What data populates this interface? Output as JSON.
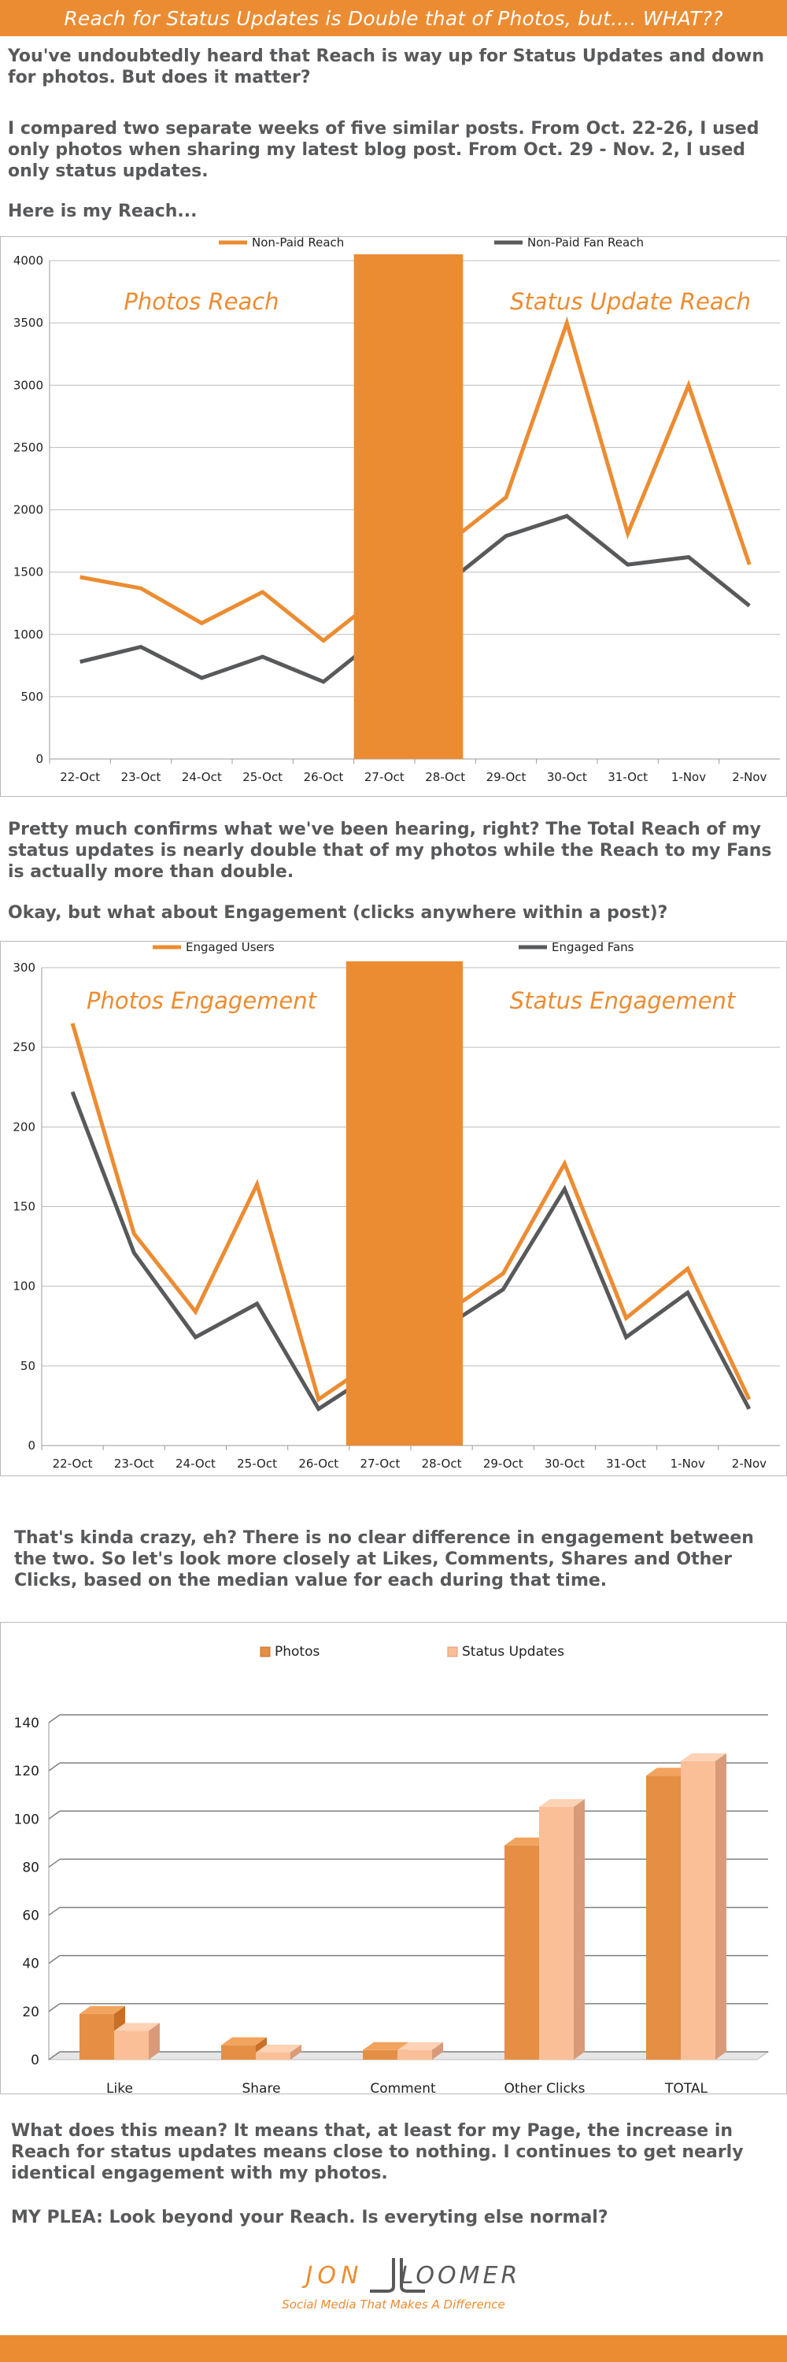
{
  "header": {
    "title": "Reach for Status Updates is Double that of Photos, but.... WHAT??"
  },
  "text": {
    "p1": "You've undoubtedly heard that Reach is way up for Status Updates and down for photos. But does it matter?",
    "p2": "I compared two separate weeks of five similar posts. From Oct. 22-26, I used only photos when sharing my latest blog post. From Oct. 29 - Nov. 2, I used only status updates.",
    "p3": "Here is my Reach...",
    "p4": "Pretty much confirms what we've been hearing, right?  The Total Reach of my status updates  is nearly double that of my photos while the Reach to my Fans is actually more than double.",
    "p5": "Okay, but what about Engagement (clicks anywhere within a post)?",
    "p6": "That's kinda crazy, eh? There is no clear difference in engagement between the two. So let's look more closely at Likes, Comments, Shares and Other Clicks, based on the median value for each during that time.",
    "p7": "What does this mean? It means that, at least for my Page, the increase in Reach for status updates means close to nothing. I continues to get nearly identical engagement with my photos.",
    "p8": "MY PLEA: Look beyond your Reach. Is everyting else normal?"
  },
  "logo": {
    "name_left": "JON",
    "name_right": "LOOMER",
    "tagline": "Social Media That Makes A Difference"
  },
  "colors": {
    "orange": "#ec8c32",
    "dark": "#58595b",
    "light_orange": "#fbbf98",
    "bar_orange": "#e48f44"
  },
  "chart_data": [
    {
      "type": "line",
      "categories": [
        "22-Oct",
        "23-Oct",
        "24-Oct",
        "25-Oct",
        "26-Oct",
        "27-Oct",
        "28-Oct",
        "29-Oct",
        "30-Oct",
        "31-Oct",
        "1-Nov",
        "2-Nov"
      ],
      "series": [
        {
          "name": "Non-Paid Reach",
          "values": [
            1460,
            1370,
            1090,
            1340,
            950,
            null,
            null,
            2100,
            3500,
            1810,
            3000,
            1560
          ]
        },
        {
          "name": "Non-Paid Fan Reach",
          "values": [
            780,
            900,
            650,
            820,
            620,
            null,
            null,
            1790,
            1950,
            1560,
            1620,
            1230
          ]
        }
      ],
      "yticks": [
        0,
        500,
        1000,
        1500,
        2000,
        2500,
        3000,
        3500,
        4000
      ],
      "ylim": [
        0,
        4000
      ],
      "annotations": [
        "Photos Reach",
        "Status Update Reach"
      ],
      "grid": true,
      "legend": "top"
    },
    {
      "type": "line",
      "categories": [
        "22-Oct",
        "23-Oct",
        "24-Oct",
        "25-Oct",
        "26-Oct",
        "27-Oct",
        "28-Oct",
        "29-Oct",
        "30-Oct",
        "31-Oct",
        "1-Nov",
        "2-Nov"
      ],
      "series": [
        {
          "name": "Engaged Users",
          "values": [
            265,
            133,
            84,
            164,
            29,
            null,
            null,
            108,
            177,
            80,
            111,
            29
          ]
        },
        {
          "name": "Engaged Fans",
          "values": [
            222,
            121,
            68,
            89,
            23,
            null,
            null,
            98,
            161,
            68,
            96,
            23
          ]
        }
      ],
      "yticks": [
        0,
        50,
        100,
        150,
        200,
        250,
        300
      ],
      "ylim": [
        0,
        300
      ],
      "annotations": [
        "Photos Engagement",
        "Status Engagement"
      ],
      "grid": true,
      "legend": "top"
    },
    {
      "type": "bar",
      "categories": [
        "Like",
        "Share",
        "Comment",
        "Other Clicks",
        "TOTAL"
      ],
      "series": [
        {
          "name": "Photos",
          "values": [
            19,
            6,
            4,
            89,
            118
          ]
        },
        {
          "name": "Status Updates",
          "values": [
            12,
            3,
            4,
            105,
            124
          ]
        }
      ],
      "yticks": [
        0,
        20,
        40,
        60,
        80,
        100,
        120,
        140
      ],
      "ylim": [
        0,
        140
      ],
      "grid": true,
      "legend": "top"
    }
  ]
}
